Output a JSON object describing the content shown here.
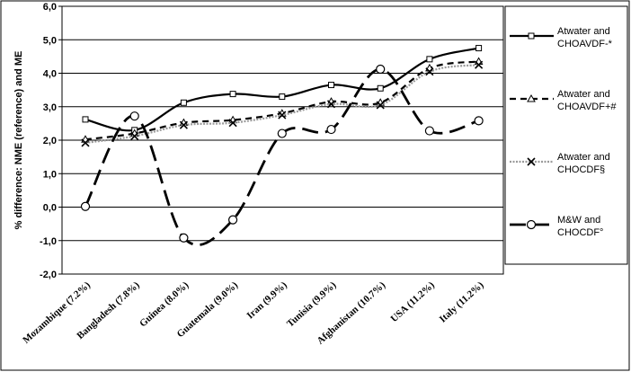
{
  "chart_data": {
    "type": "line",
    "title": "",
    "xlabel": "",
    "ylabel": "% difference: NME (reference) and ME",
    "ylim": [
      -2.0,
      6.0
    ],
    "yticks": [
      "-2,0",
      "-1,0",
      "0,0",
      "1,0",
      "2,0",
      "3,0",
      "4,0",
      "5,0",
      "6,0"
    ],
    "grid": "horizontal",
    "legend_position": "right",
    "categories": [
      "Mozambique (7.2%)",
      "Bangladesh (7.8%)",
      "Guinea (8.0%)",
      "Guatemala (9.0%)",
      "Iran (9.9%)",
      "Tunisia (9.9%)",
      "Afghanistan (10.7%)",
      "USA (11.2%)",
      "Italy (11.2%)"
    ],
    "series": [
      {
        "name": "Atwater and CHOAVDF-*",
        "legend_lines": [
          "Atwater and",
          "CHOAVDF-*"
        ],
        "marker": "square",
        "line": "solid",
        "values": [
          2.62,
          2.3,
          3.12,
          3.38,
          3.3,
          3.65,
          3.55,
          4.42,
          4.75
        ]
      },
      {
        "name": "Atwater and CHOAVDF+#",
        "legend_lines": [
          "Atwater and",
          "CHOAVDF+#"
        ],
        "marker": "triangle",
        "line": "dashed",
        "values": [
          2.02,
          2.2,
          2.52,
          2.6,
          2.8,
          3.15,
          3.12,
          4.15,
          4.35
        ]
      },
      {
        "name": "Atwater and CHOCDF§",
        "legend_lines": [
          "Atwater and",
          "CHOCDF§"
        ],
        "marker": "x",
        "line": "dotted",
        "values": [
          1.92,
          2.12,
          2.45,
          2.52,
          2.75,
          3.08,
          3.05,
          4.05,
          4.25
        ]
      },
      {
        "name": "M&W and CHOCDF°",
        "legend_lines": [
          "M&W and",
          "CHOCDF°"
        ],
        "marker": "circle",
        "line": "longdash",
        "values": [
          0.02,
          2.72,
          -0.92,
          -0.38,
          2.2,
          2.32,
          4.12,
          2.28,
          2.58
        ]
      }
    ]
  }
}
